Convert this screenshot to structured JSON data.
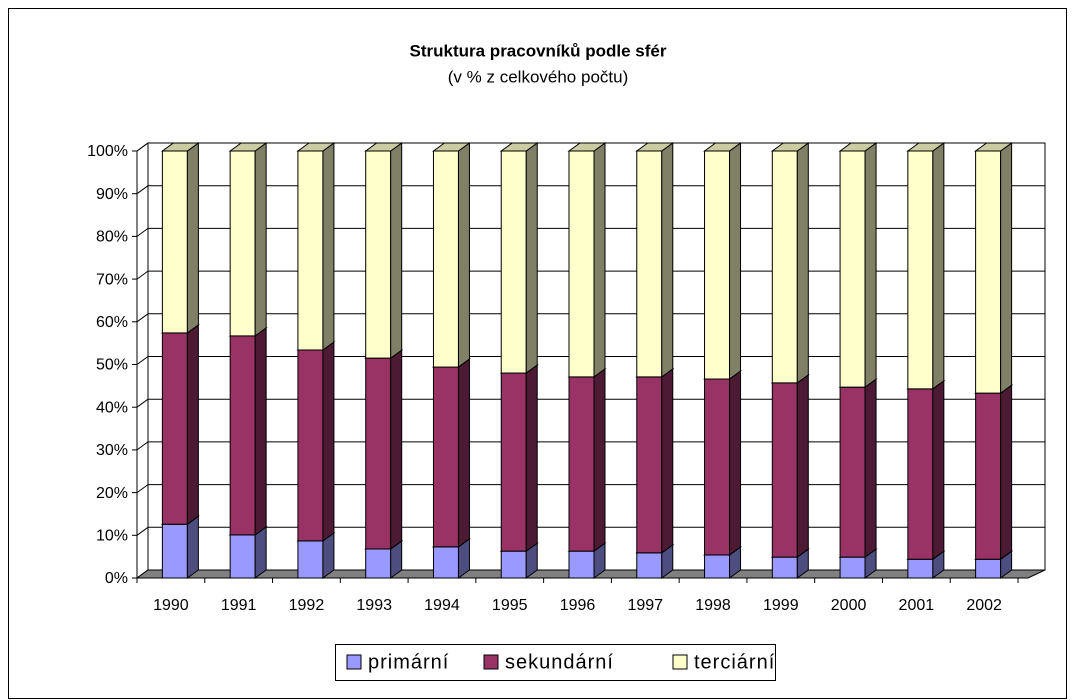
{
  "chart_data": {
    "type": "stacked_bar_3d",
    "title": "Struktura pracovníků podle sfér",
    "subtitle": "(v % z celkového počtu)",
    "categories": [
      "1990",
      "1991",
      "1992",
      "1993",
      "1994",
      "1995",
      "1996",
      "1997",
      "1998",
      "1999",
      "2000",
      "2001",
      "2002"
    ],
    "series": [
      {
        "name": "primární",
        "color": "#9999ff",
        "values": [
          12.6,
          10.1,
          8.7,
          6.8,
          7.3,
          6.3,
          6.3,
          5.9,
          5.4,
          4.9,
          4.9,
          4.4,
          4.4
        ]
      },
      {
        "name": "sekundární",
        "color": "#993366",
        "values": [
          44.8,
          46.6,
          44.7,
          44.7,
          42.1,
          41.7,
          40.8,
          41.2,
          41.2,
          40.8,
          39.8,
          39.9,
          38.9
        ]
      },
      {
        "name": "terciární",
        "color": "#ffffcc",
        "values": [
          42.6,
          43.3,
          46.6,
          48.5,
          50.6,
          52.0,
          52.9,
          52.9,
          53.4,
          54.3,
          55.3,
          55.7,
          56.7
        ]
      }
    ],
    "ylim": [
      0,
      100
    ],
    "yticks": [
      {
        "value": 0,
        "label": "0%"
      },
      {
        "value": 10,
        "label": "10%"
      },
      {
        "value": 20,
        "label": "20%"
      },
      {
        "value": 30,
        "label": "30%"
      },
      {
        "value": 40,
        "label": "40%"
      },
      {
        "value": 50,
        "label": "50%"
      },
      {
        "value": 60,
        "label": "60%"
      },
      {
        "value": 70,
        "label": "70%"
      },
      {
        "value": 80,
        "label": "80%"
      },
      {
        "value": 90,
        "label": "90%"
      },
      {
        "value": 100,
        "label": "100%"
      }
    ],
    "grid": true,
    "legend": "bottom"
  }
}
